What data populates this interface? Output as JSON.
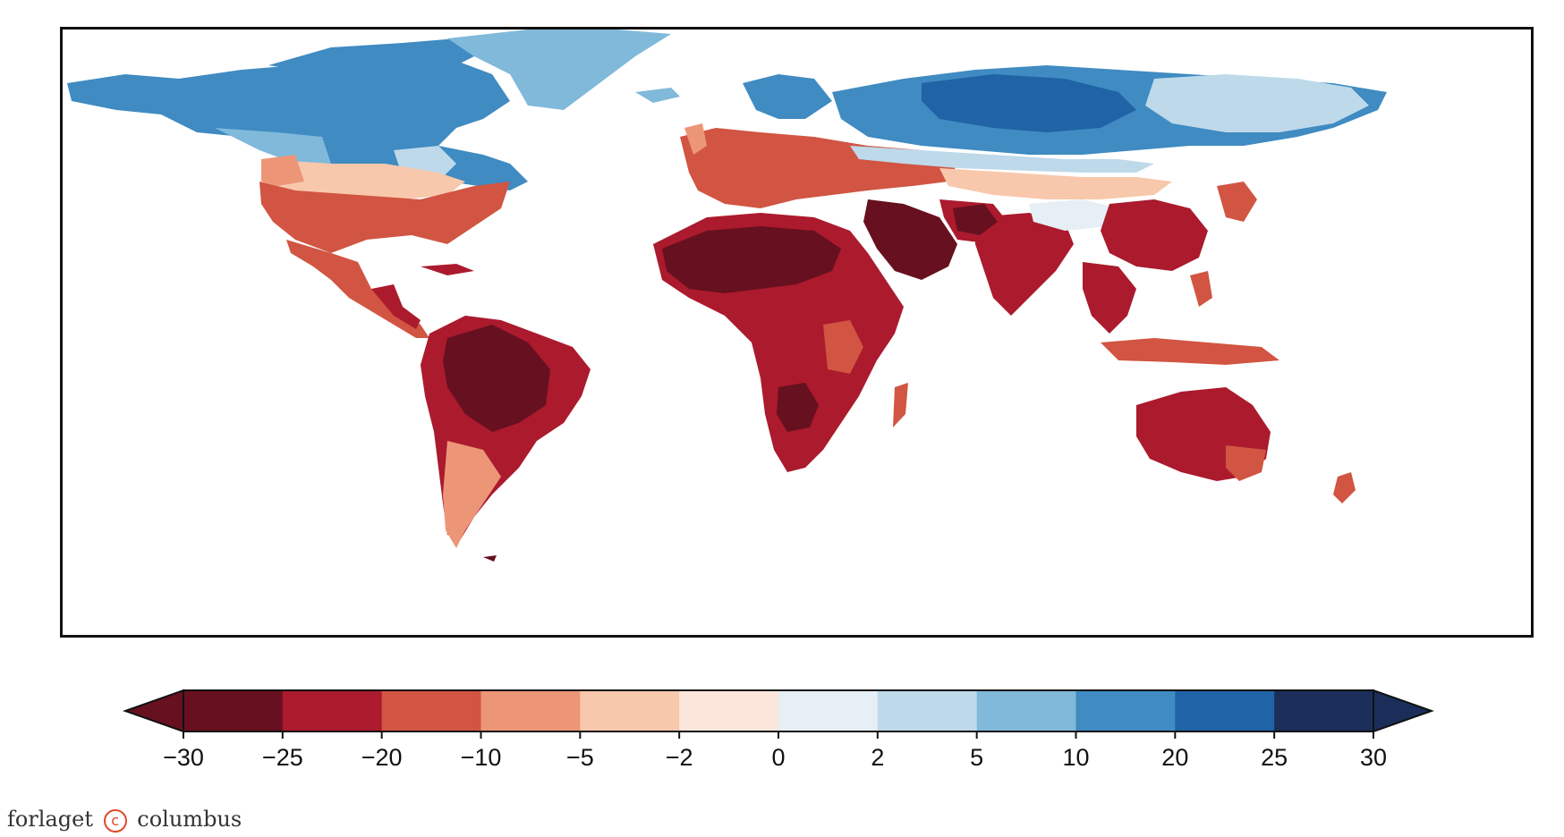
{
  "colorbar": {
    "ticks": [
      "−30",
      "−25",
      "−20",
      "−10",
      "−5",
      "−2",
      "0",
      "2",
      "5",
      "10",
      "20",
      "25",
      "30"
    ],
    "bin_colors": [
      "#67101f",
      "#ab1a2d",
      "#d15542",
      "#ec9677",
      "#f8c8ac",
      "#fce6dc",
      "#e6eef6",
      "#bed9ea",
      "#80b9da",
      "#3f8bc2",
      "#2063a6",
      "#1b2e5a"
    ],
    "extend": "both"
  },
  "publisher": {
    "left": "forlaget",
    "right": "columbus",
    "logo_glyph": "c"
  },
  "map": {
    "land_colors": {
      "very_hot": "#67101f",
      "hot": "#ab1a2d",
      "warm": "#d15542",
      "mild_warm": "#ec9677",
      "light_warm": "#f8c8ac",
      "near_zero_warm": "#fce6dc",
      "near_zero_cold": "#e6eef6",
      "light_cold": "#bed9ea",
      "cold": "#80b9da",
      "colder": "#3f8bc2",
      "coldest": "#2063a6",
      "extreme_cold": "#1b2e5a"
    }
  }
}
